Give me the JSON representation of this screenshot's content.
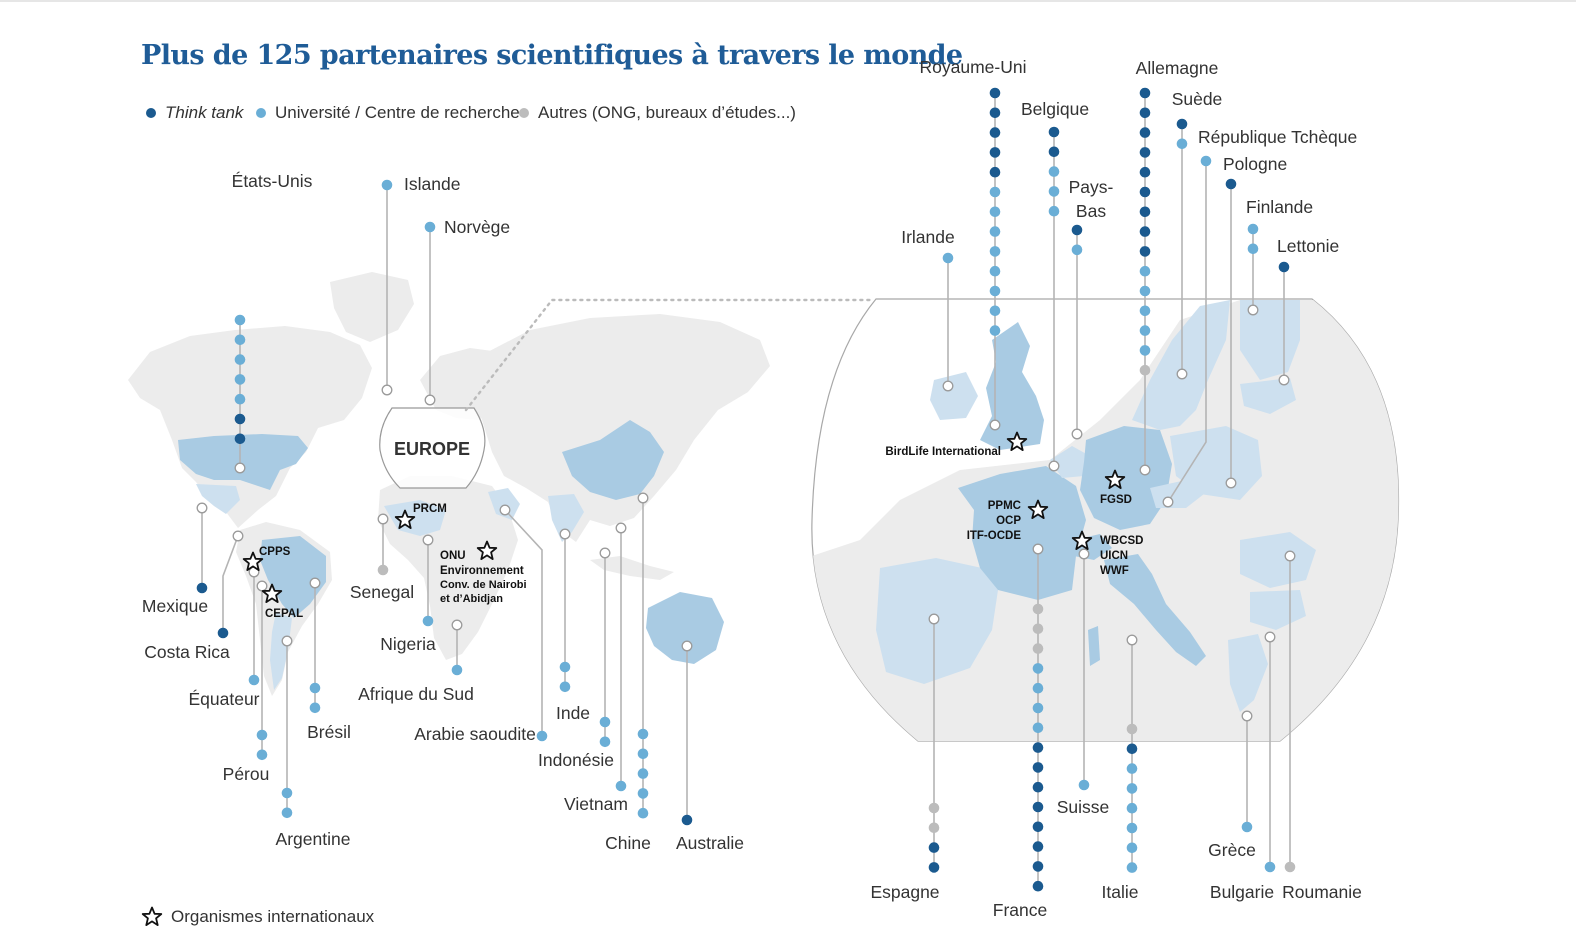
{
  "title": "Plus de 125 partenaires scientifiques à travers le monde",
  "legend": {
    "think_tank": {
      "label": "Think tank",
      "color": "#1b5a8f"
    },
    "university": {
      "label": "Université / Centre de recherche",
      "color": "#6aaed6"
    },
    "others": {
      "label": "Autres (ONG, bureaux d’études...)",
      "color": "#bcbcbc"
    }
  },
  "intl_orgs_legend": "Organismes internationaux",
  "europe_label": "EUROPE",
  "map_colors": {
    "land": "#ececec",
    "partner_country": "#a9cbe3",
    "partner_light": "#cde0ef"
  },
  "countries": [
    {
      "name": "États-Unis",
      "partners": [
        "u",
        "u",
        "u",
        "u",
        "u",
        "t",
        "t"
      ]
    },
    {
      "name": "Mexique",
      "partners": [
        "t"
      ]
    },
    {
      "name": "Costa Rica",
      "partners": [
        "t"
      ]
    },
    {
      "name": "Équateur",
      "partners": [
        "u"
      ]
    },
    {
      "name": "Pérou",
      "partners": [
        "u",
        "u"
      ]
    },
    {
      "name": "Brésil",
      "partners": [
        "u",
        "u"
      ]
    },
    {
      "name": "Argentine",
      "partners": [
        "u",
        "u"
      ]
    },
    {
      "name": "Islande",
      "partners": [
        "u"
      ]
    },
    {
      "name": "Norvège",
      "partners": [
        "u"
      ]
    },
    {
      "name": "Senegal",
      "partners": [
        "o"
      ]
    },
    {
      "name": "Nigeria",
      "partners": [
        "u"
      ]
    },
    {
      "name": "Afrique du Sud",
      "partners": [
        "u"
      ]
    },
    {
      "name": "Arabie saoudite",
      "partners": [
        "u"
      ]
    },
    {
      "name": "Inde",
      "partners": [
        "u",
        "u"
      ]
    },
    {
      "name": "Indonésie",
      "partners": [
        "u",
        "u"
      ]
    },
    {
      "name": "Vietnam",
      "partners": [
        "u"
      ]
    },
    {
      "name": "Chine",
      "partners": [
        "u",
        "u",
        "u",
        "u",
        "u"
      ]
    },
    {
      "name": "Australie",
      "partners": [
        "t"
      ]
    },
    {
      "name": "Royaume-Uni",
      "partners": [
        "t",
        "t",
        "t",
        "t",
        "t",
        "u",
        "u",
        "u",
        "u",
        "u",
        "u",
        "u",
        "u"
      ]
    },
    {
      "name": "Belgique",
      "partners": [
        "t",
        "t",
        "u",
        "u",
        "u"
      ]
    },
    {
      "name": "Pays-Bas",
      "partners": [
        "t",
        "u"
      ]
    },
    {
      "name": "Irlande",
      "partners": [
        "u"
      ]
    },
    {
      "name": "Allemagne",
      "partners": [
        "t",
        "t",
        "t",
        "t",
        "t",
        "t",
        "t",
        "t",
        "t",
        "u",
        "u",
        "u",
        "u",
        "u",
        "o"
      ]
    },
    {
      "name": "Suède",
      "partners": [
        "t",
        "u"
      ]
    },
    {
      "name": "République Tchèque",
      "partners": [
        "u"
      ]
    },
    {
      "name": "Pologne",
      "partners": [
        "t"
      ]
    },
    {
      "name": "Finlande",
      "partners": [
        "u",
        "u"
      ]
    },
    {
      "name": "Lettonie",
      "partners": [
        "t"
      ]
    },
    {
      "name": "Espagne",
      "partners": [
        "o",
        "o",
        "t",
        "t"
      ]
    },
    {
      "name": "France",
      "partners": [
        "o",
        "o",
        "o",
        "u",
        "u",
        "u",
        "u",
        "t",
        "t",
        "t",
        "t",
        "t",
        "t",
        "t",
        "t"
      ]
    },
    {
      "name": "Suisse",
      "partners": [
        "u"
      ]
    },
    {
      "name": "Italie",
      "partners": [
        "o",
        "t",
        "u",
        "u",
        "u",
        "u",
        "u",
        "u"
      ]
    },
    {
      "name": "Grèce",
      "partners": [
        "u"
      ]
    },
    {
      "name": "Bulgarie",
      "partners": [
        "u"
      ]
    },
    {
      "name": "Roumanie",
      "partners": [
        "o"
      ]
    }
  ],
  "international_organisations": [
    {
      "lines": [
        "CPPS"
      ]
    },
    {
      "lines": [
        "CEPAL"
      ]
    },
    {
      "lines": [
        "PRCM"
      ]
    },
    {
      "lines": [
        "ONU",
        "Environnement"
      ],
      "sub": [
        "Conv. de Nairobi",
        "et d’Abidjan"
      ]
    },
    {
      "lines": [
        "BirdLife International"
      ]
    },
    {
      "lines": [
        "PPMC",
        "OCP",
        "ITF-OCDE"
      ]
    },
    {
      "lines": [
        "FGSD"
      ]
    },
    {
      "lines": [
        "WBCSD",
        "UICN",
        "WWF"
      ]
    }
  ]
}
